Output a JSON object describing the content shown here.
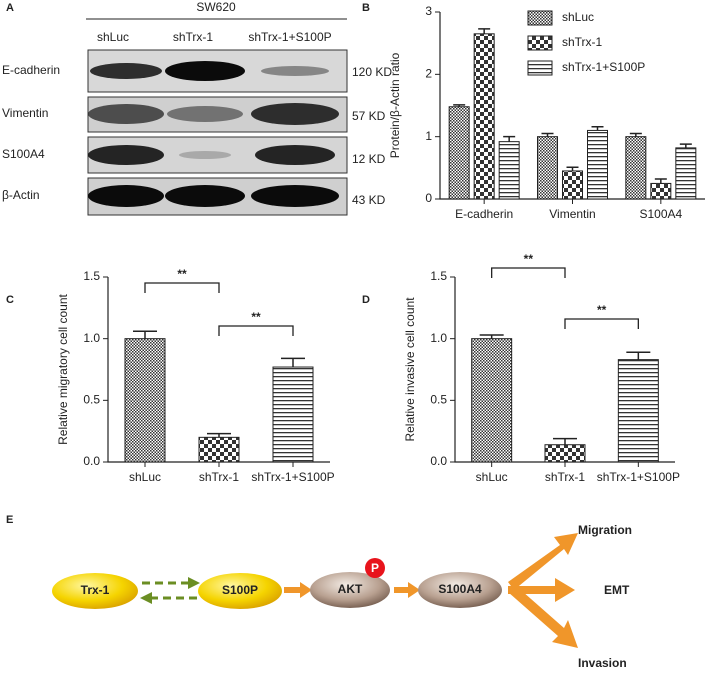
{
  "panel_a": {
    "letter": "A",
    "title": "SW620",
    "lanes": [
      "shLuc",
      "shTrx-1",
      "shTrx-1+S100P"
    ],
    "rows": [
      {
        "protein": "E-cadherin",
        "size": "120 KD"
      },
      {
        "protein": "Vimentin",
        "size": "57 KD"
      },
      {
        "protein": "S100A4",
        "size": "12 KD"
      },
      {
        "protein": "β-Actin",
        "size": "43 KD"
      }
    ]
  },
  "chart_data": [
    {
      "type": "grouped_bar",
      "panel": "B",
      "y_label": "Protein/β-Actin ratio",
      "categories": [
        "E-cadherin",
        "Vimentin",
        "S100A4"
      ],
      "series": [
        {
          "name": "shLuc",
          "values": [
            1.48,
            1.0,
            1.0
          ],
          "errors": [
            0.03,
            0.05,
            0.05
          ]
        },
        {
          "name": "shTrx-1",
          "values": [
            2.65,
            0.45,
            0.25
          ],
          "errors": [
            0.08,
            0.06,
            0.07
          ]
        },
        {
          "name": "shTrx-1+S100P",
          "values": [
            0.92,
            1.1,
            0.82
          ],
          "errors": [
            0.08,
            0.06,
            0.06
          ]
        }
      ],
      "ylim": [
        0,
        3
      ],
      "yticks": [
        0,
        1,
        2,
        3
      ]
    },
    {
      "type": "bar",
      "panel": "C",
      "y_label": "Relative migratory cell count",
      "categories": [
        "shLuc",
        "shTrx-1",
        "shTrx-1+S100P"
      ],
      "values": [
        1.0,
        0.2,
        0.77
      ],
      "errors": [
        0.06,
        0.03,
        0.07
      ],
      "ylim": [
        0,
        1.5
      ],
      "yticks": [
        {
          "value": 0,
          "label": "0.0"
        },
        0.5,
        {
          "value": 1,
          "label": "1.0"
        },
        1.5
      ],
      "annotations": [
        "**",
        "**"
      ]
    },
    {
      "type": "bar",
      "panel": "D",
      "y_label": "Relative invasive cell count",
      "categories": [
        "shLuc",
        "shTrx-1",
        "shTrx-1+S100P"
      ],
      "values": [
        1.0,
        0.14,
        0.83
      ],
      "errors": [
        0.03,
        0.05,
        0.06
      ],
      "ylim": [
        0,
        1.5
      ],
      "yticks": [
        {
          "value": 0,
          "label": "0.0"
        },
        0.5,
        {
          "value": 1,
          "label": "1.0"
        },
        1.5
      ],
      "annotations": [
        "**",
        "**"
      ]
    }
  ],
  "panel_e": {
    "letter": "E",
    "nodes": [
      "Trx-1",
      "S100P",
      "AKT",
      "P",
      "S100A4"
    ],
    "outcomes": [
      "Migration",
      "EMT",
      "Invasion"
    ]
  }
}
